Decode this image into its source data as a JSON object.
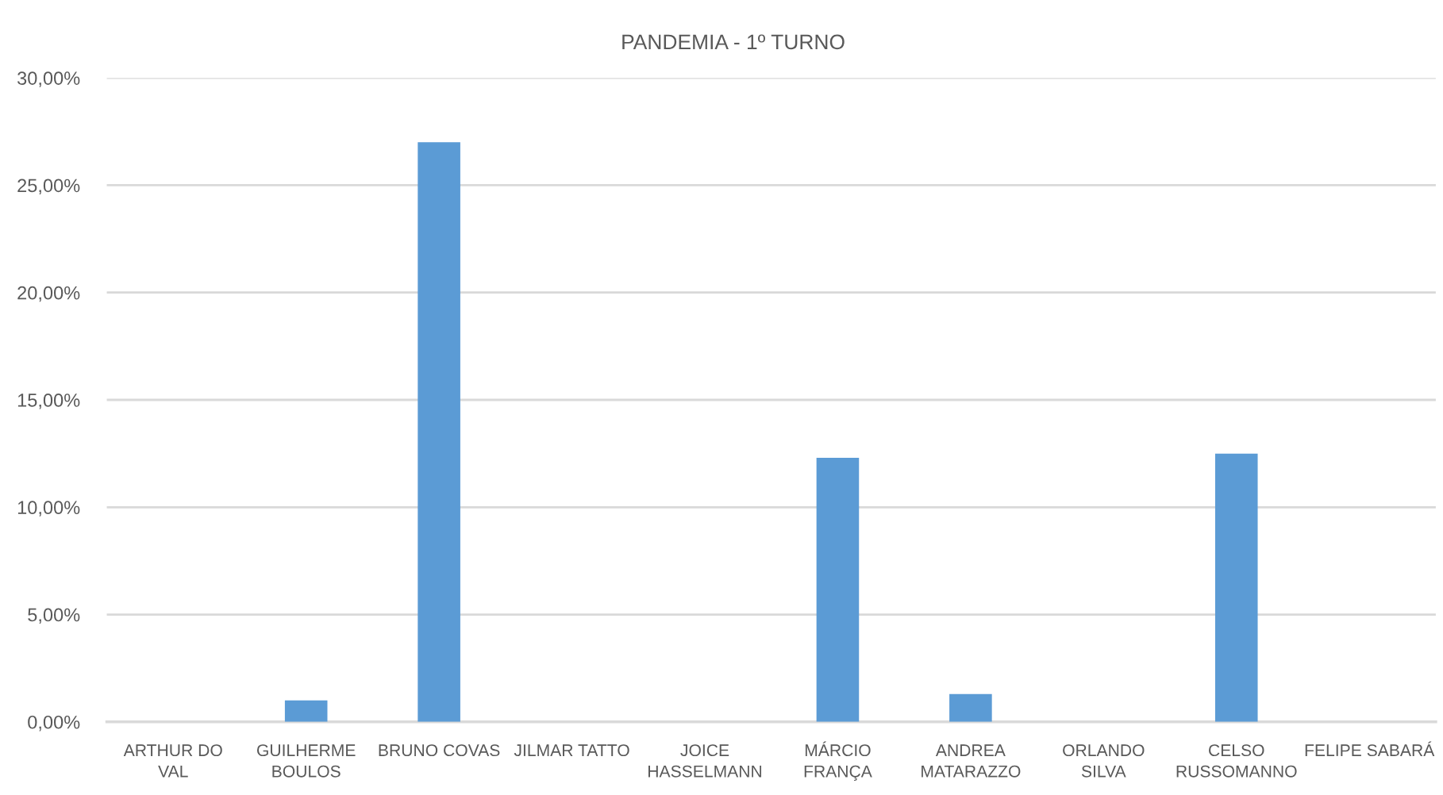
{
  "chart_data": {
    "type": "bar",
    "title": "PANDEMIA - 1º TURNO",
    "categories": [
      "ARTHUR DO\nVAL",
      "GUILHERME\nBOULOS",
      "BRUNO COVAS",
      "JILMAR TATTO",
      "JOICE\nHASSELMANN",
      "MÁRCIO\nFRANÇA",
      "ANDREA\nMATARAZZO",
      "ORLANDO\nSILVA",
      "CELSO\nRUSSOMANNO",
      "FELIPE SABARÁ"
    ],
    "values": [
      0,
      1.0,
      27.0,
      0,
      0,
      12.3,
      1.3,
      0,
      12.5,
      0
    ],
    "color": "#5b9bd5",
    "ylim": [
      0,
      30
    ],
    "yticks": [
      {
        "value": 0,
        "label": "0,00%"
      },
      {
        "value": 5,
        "label": "5,00%"
      },
      {
        "value": 10,
        "label": "10,00%"
      },
      {
        "value": 15,
        "label": "15,00%"
      },
      {
        "value": 20,
        "label": "20,00%"
      },
      {
        "value": 25,
        "label": "25,00%"
      },
      {
        "value": 30,
        "label": "30,00%"
      }
    ],
    "grid": "y"
  }
}
